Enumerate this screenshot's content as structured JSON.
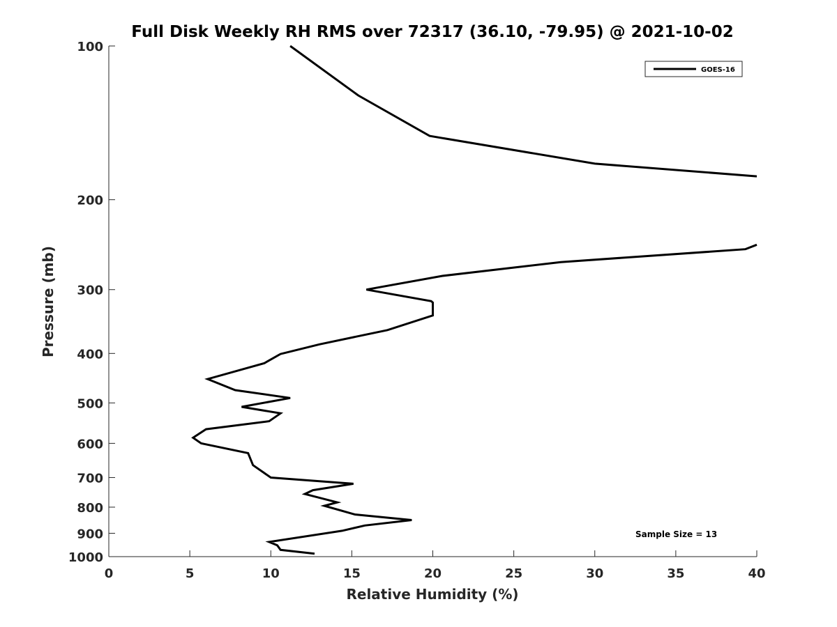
{
  "chart_data": {
    "type": "line",
    "title": "Full Disk Weekly RH RMS over 72317 (36.10, -79.95) @ 2021-10-02",
    "xlabel": "Relative Humidity (%)",
    "ylabel": "Pressure (mb)",
    "xlim": [
      0,
      40
    ],
    "ylim": [
      100,
      1000
    ],
    "yscale": "log",
    "yreversed": true,
    "grid": false,
    "legend_position": "top-right",
    "xticks": [
      0,
      5,
      10,
      15,
      20,
      25,
      30,
      35,
      40
    ],
    "yticks": [
      100,
      200,
      300,
      400,
      500,
      600,
      700,
      800,
      900,
      1000
    ],
    "series": [
      {
        "name": "GOES-16",
        "color": "#000000",
        "points": [
          [
            11.2,
            100
          ],
          [
            15.4,
            125
          ],
          [
            19.8,
            150
          ],
          [
            30.0,
            170
          ],
          [
            40.0,
            180
          ],
          [
            null,
            null
          ],
          [
            40.0,
            245
          ],
          [
            39.3,
            250
          ],
          [
            27.9,
            265
          ],
          [
            20.6,
            282
          ],
          [
            15.9,
            300
          ],
          [
            19.9,
            316
          ],
          [
            20.0,
            318
          ],
          [
            20.0,
            337
          ],
          [
            17.2,
            360
          ],
          [
            13.0,
            384
          ],
          [
            10.6,
            401
          ],
          [
            9.6,
            418
          ],
          [
            6.1,
            449
          ],
          [
            7.8,
            472
          ],
          [
            11.2,
            489
          ],
          [
            8.2,
            509
          ],
          [
            10.6,
            524
          ],
          [
            9.9,
            543
          ],
          [
            6.0,
            563
          ],
          [
            5.2,
            585
          ],
          [
            5.7,
            600
          ],
          [
            8.6,
            627
          ],
          [
            8.9,
            662
          ],
          [
            10.0,
            700
          ],
          [
            15.1,
            720
          ],
          [
            12.6,
            741
          ],
          [
            12.1,
            754
          ],
          [
            14.1,
            783
          ],
          [
            13.3,
            795
          ],
          [
            15.2,
            827
          ],
          [
            18.7,
            848
          ],
          [
            15.8,
            869
          ],
          [
            14.4,
            890
          ],
          [
            9.9,
            936
          ],
          [
            10.4,
            950
          ],
          [
            10.6,
            970
          ],
          [
            12.7,
            987
          ]
        ]
      }
    ],
    "annotations": [
      "Sample Size = 13"
    ]
  }
}
